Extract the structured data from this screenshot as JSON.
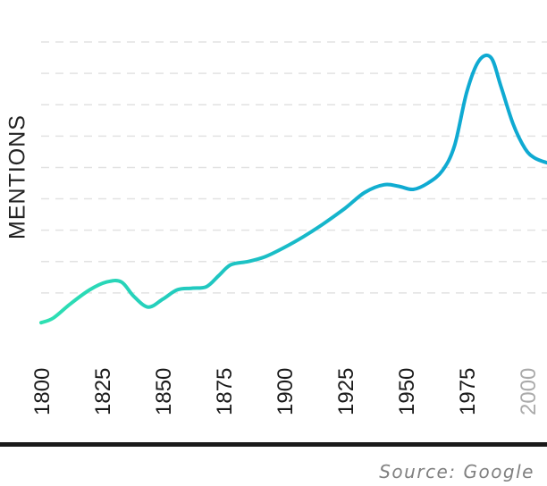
{
  "chart_data": {
    "type": "line",
    "ylabel": "MENTIONS",
    "xlabel": "",
    "x_ticks": [
      "1800",
      "1825",
      "1850",
      "1875",
      "1900",
      "1925",
      "1950",
      "1975",
      "2000"
    ],
    "muted_ticks": [
      "2000"
    ],
    "xlim": [
      1800,
      2008
    ],
    "ylim": [
      0,
      9
    ],
    "y_gridlines": [
      1,
      2,
      3,
      4,
      5,
      6,
      7,
      8,
      9
    ],
    "y_tick_labels_shown": false,
    "grid": "dashed horizontal",
    "gradient_colors": [
      "#2ee0b2",
      "#0faad2"
    ],
    "series": [
      {
        "x": [
          1800,
          1805,
          1812,
          1820,
          1827,
          1833,
          1838,
          1844,
          1850,
          1856,
          1862,
          1868,
          1873,
          1878,
          1885,
          1892,
          1900,
          1908,
          1916,
          1925,
          1933,
          1941,
          1947,
          1953,
          1959,
          1965,
          1970,
          1975,
          1980,
          1985,
          1989,
          1994,
          1999,
          2003,
          2008
        ],
        "values": [
          0.05,
          0.2,
          0.65,
          1.1,
          1.35,
          1.35,
          0.9,
          0.55,
          0.8,
          1.1,
          1.15,
          1.2,
          1.55,
          1.9,
          2.0,
          2.15,
          2.45,
          2.8,
          3.2,
          3.7,
          4.2,
          4.45,
          4.4,
          4.3,
          4.5,
          4.9,
          5.7,
          7.4,
          8.4,
          8.5,
          7.6,
          6.4,
          5.6,
          5.3,
          5.15
        ]
      }
    ]
  },
  "footer": {
    "source": "Source: Google"
  }
}
